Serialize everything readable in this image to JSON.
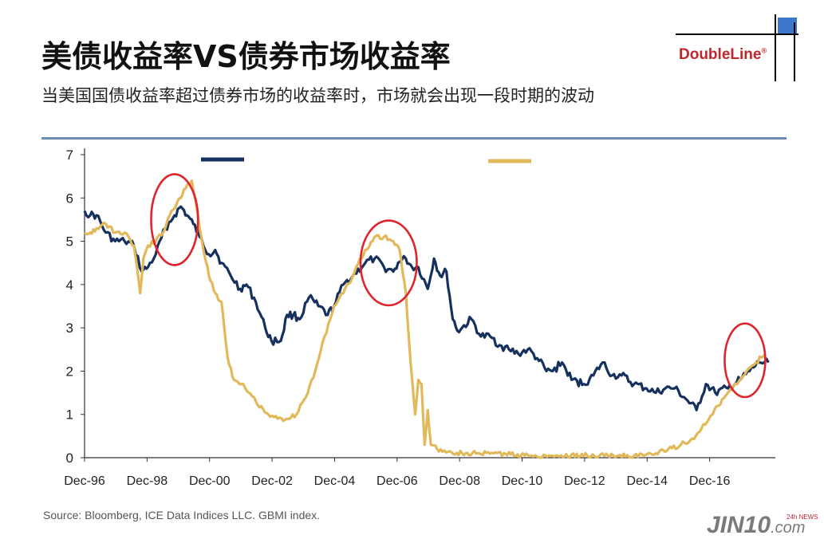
{
  "header": {
    "title": "美债收益率VS债券市场收益率",
    "subtitle": "当美国国债收益率超过债券市场的收益率时，市场就会出现一段时期的波动",
    "logo_text": "DoubleLine",
    "logo_mark": "®"
  },
  "footer": {
    "source": "Source:  Bloomberg, ICE Data Indices LLC. GBMI index.",
    "watermark": "JIN10",
    "watermark_suffix": ".com",
    "watermark_tag": "24h NEWS"
  },
  "colors": {
    "treasury_series": "#17315e",
    "bond_series": "#e2b95a",
    "circle": "#e0242c",
    "rule": "#6a8cb6",
    "logo_red": "#c0272d",
    "logo_blue": "#3b78c9"
  },
  "chart_data": {
    "type": "line",
    "title": "",
    "xlabel": "",
    "ylabel": "",
    "ylim": [
      0,
      7
    ],
    "yticks": [
      "0",
      "1",
      "2",
      "3",
      "4",
      "5",
      "6",
      "7"
    ],
    "xlim": [
      1996.92,
      2018.92
    ],
    "xtick_positions": [
      1996.92,
      1998.92,
      2000.92,
      2002.92,
      2004.92,
      2006.92,
      2008.92,
      2010.92,
      2012.92,
      2014.92,
      2016.92
    ],
    "xtick_labels": [
      "Dec-96",
      "Dec-98",
      "Dec-00",
      "Dec-02",
      "Dec-04",
      "Dec-06",
      "Dec-08",
      "Dec-10",
      "Dec-12",
      "Dec-14",
      "Dec-16"
    ],
    "grid": false,
    "series": [
      {
        "color": "#17315e",
        "x": [
          1996.92,
          1997.1,
          1997.3,
          1997.6,
          1997.9,
          1998.2,
          1998.5,
          1998.75,
          1998.95,
          1999.2,
          1999.5,
          1999.8,
          2000.0,
          2000.2,
          2000.4,
          2000.6,
          2000.9,
          2001.1,
          2001.3,
          2001.6,
          2001.9,
          2002.1,
          2002.4,
          2002.7,
          2002.9,
          2003.2,
          2003.4,
          2003.6,
          2003.8,
          2004.1,
          2004.4,
          2004.7,
          2004.9,
          2005.2,
          2005.5,
          2005.9,
          2006.2,
          2006.5,
          2006.8,
          2006.95,
          2007.2,
          2007.4,
          2007.6,
          2007.9,
          2008.1,
          2008.3,
          2008.5,
          2008.7,
          2008.9,
          2009.0,
          2009.3,
          2009.6,
          2009.9,
          2010.2,
          2010.5,
          2010.8,
          2011.1,
          2011.4,
          2011.7,
          2011.9,
          2012.2,
          2012.5,
          2012.9,
          2013.2,
          2013.5,
          2013.8,
          2014.1,
          2014.5,
          2014.9,
          2015.2,
          2015.5,
          2015.8,
          2016.1,
          2016.5,
          2016.8,
          2017.1,
          2017.5,
          2017.9,
          2018.2,
          2018.5,
          2018.8
        ],
        "y": [
          5.7,
          5.6,
          5.6,
          5.2,
          5.0,
          5.0,
          4.9,
          4.3,
          4.4,
          4.7,
          5.3,
          5.6,
          5.8,
          5.6,
          5.4,
          5.1,
          4.7,
          4.8,
          4.5,
          4.2,
          3.9,
          4.0,
          3.6,
          3.0,
          2.7,
          2.7,
          3.3,
          3.3,
          3.2,
          3.7,
          3.5,
          3.3,
          3.5,
          4.0,
          4.2,
          4.5,
          4.6,
          4.4,
          4.3,
          4.5,
          4.6,
          4.4,
          4.4,
          3.9,
          4.6,
          4.2,
          4.3,
          3.2,
          2.9,
          3.0,
          3.2,
          2.8,
          2.8,
          2.6,
          2.5,
          2.4,
          2.5,
          2.3,
          2.0,
          2.0,
          2.2,
          1.8,
          1.7,
          1.9,
          2.2,
          1.9,
          1.9,
          1.7,
          1.6,
          1.5,
          1.6,
          1.6,
          1.4,
          1.1,
          1.7,
          1.5,
          1.6,
          1.8,
          2.0,
          2.2,
          2.2
        ]
      },
      {
        "color": "#e2b95a",
        "x": [
          1996.92,
          1997.1,
          1997.3,
          1997.6,
          1997.9,
          1998.2,
          1998.5,
          1998.7,
          1998.8,
          1998.95,
          1999.2,
          1999.5,
          1999.7,
          2000.0,
          2000.2,
          2000.35,
          2000.5,
          2000.7,
          2000.9,
          2001.1,
          2001.3,
          2001.5,
          2001.7,
          2002.0,
          2002.4,
          2002.8,
          2003.1,
          2003.4,
          2003.7,
          2004.0,
          2004.3,
          2004.6,
          2004.9,
          2005.2,
          2005.5,
          2005.9,
          2006.2,
          2006.5,
          2006.8,
          2007.0,
          2007.2,
          2007.35,
          2007.5,
          2007.6,
          2007.7,
          2007.8,
          2007.9,
          2008.0,
          2008.2,
          2008.6,
          2009.0,
          2009.5,
          2010.0,
          2011.0,
          2012.0,
          2013.0,
          2014.0,
          2014.8,
          2015.2,
          2015.6,
          2016.0,
          2016.3,
          2016.6,
          2016.9,
          2017.2,
          2017.5,
          2017.8,
          2018.1,
          2018.4,
          2018.7
        ],
        "y": [
          5.2,
          5.2,
          5.3,
          5.4,
          5.2,
          5.2,
          4.9,
          3.8,
          4.6,
          4.9,
          5.0,
          5.3,
          5.7,
          6.0,
          6.3,
          6.4,
          5.8,
          4.9,
          4.2,
          3.8,
          3.6,
          2.3,
          1.8,
          1.7,
          1.3,
          1.0,
          0.9,
          0.9,
          1.0,
          1.4,
          2.0,
          2.8,
          3.5,
          3.8,
          4.2,
          4.8,
          5.1,
          5.1,
          5.0,
          4.8,
          3.8,
          2.2,
          1.0,
          1.8,
          1.7,
          0.3,
          1.1,
          0.3,
          0.2,
          0.15,
          0.1,
          0.1,
          0.1,
          0.05,
          0.05,
          0.05,
          0.05,
          0.05,
          0.1,
          0.2,
          0.3,
          0.4,
          0.6,
          0.9,
          1.2,
          1.5,
          1.7,
          2.0,
          2.2,
          2.4
        ]
      }
    ],
    "annotations": [
      {
        "type": "circle",
        "x": 1999.8,
        "y": 5.5,
        "rx_years": 0.75,
        "ry_units": 1.05
      },
      {
        "type": "circle",
        "x": 2006.65,
        "y": 4.5,
        "rx_years": 0.9,
        "ry_units": 0.98
      },
      {
        "type": "circle",
        "x": 2018.05,
        "y": 2.25,
        "rx_years": 0.65,
        "ry_units": 0.85
      }
    ]
  }
}
